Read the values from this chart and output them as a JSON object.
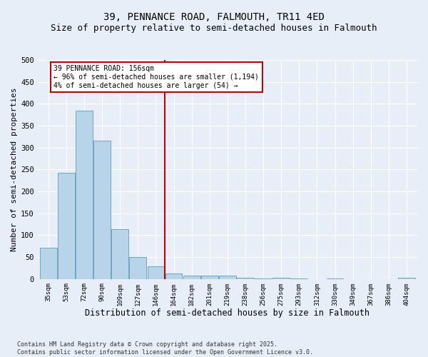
{
  "title1": "39, PENNANCE ROAD, FALMOUTH, TR11 4ED",
  "title2": "Size of property relative to semi-detached houses in Falmouth",
  "xlabel": "Distribution of semi-detached houses by size in Falmouth",
  "ylabel": "Number of semi-detached properties",
  "categories": [
    "35sqm",
    "53sqm",
    "72sqm",
    "90sqm",
    "109sqm",
    "127sqm",
    "146sqm",
    "164sqm",
    "182sqm",
    "201sqm",
    "219sqm",
    "238sqm",
    "256sqm",
    "275sqm",
    "293sqm",
    "312sqm",
    "330sqm",
    "349sqm",
    "367sqm",
    "386sqm",
    "404sqm"
  ],
  "values": [
    72,
    242,
    385,
    315,
    113,
    50,
    29,
    12,
    7,
    8,
    7,
    2,
    1,
    2,
    1,
    0,
    1,
    0,
    0,
    0,
    3
  ],
  "bar_color": "#b8d4e8",
  "bar_edge_color": "#5a9fc0",
  "vline_index": 6.5,
  "annotation_text": "39 PENNANCE ROAD: 156sqm\n← 96% of semi-detached houses are smaller (1,194)\n4% of semi-detached houses are larger (54) →",
  "annotation_box_color": "#ffffff",
  "annotation_box_edge": "#cc0000",
  "vline_color": "#cc0000",
  "footer_text": "Contains HM Land Registry data © Crown copyright and database right 2025.\nContains public sector information licensed under the Open Government Licence v3.0.",
  "ylim": [
    0,
    500
  ],
  "yticks": [
    0,
    50,
    100,
    150,
    200,
    250,
    300,
    350,
    400,
    450,
    500
  ],
  "background_color": "#e8eef8",
  "grid_color": "#ffffff",
  "title1_fontsize": 10,
  "title2_fontsize": 9,
  "xlabel_fontsize": 8.5,
  "ylabel_fontsize": 8
}
